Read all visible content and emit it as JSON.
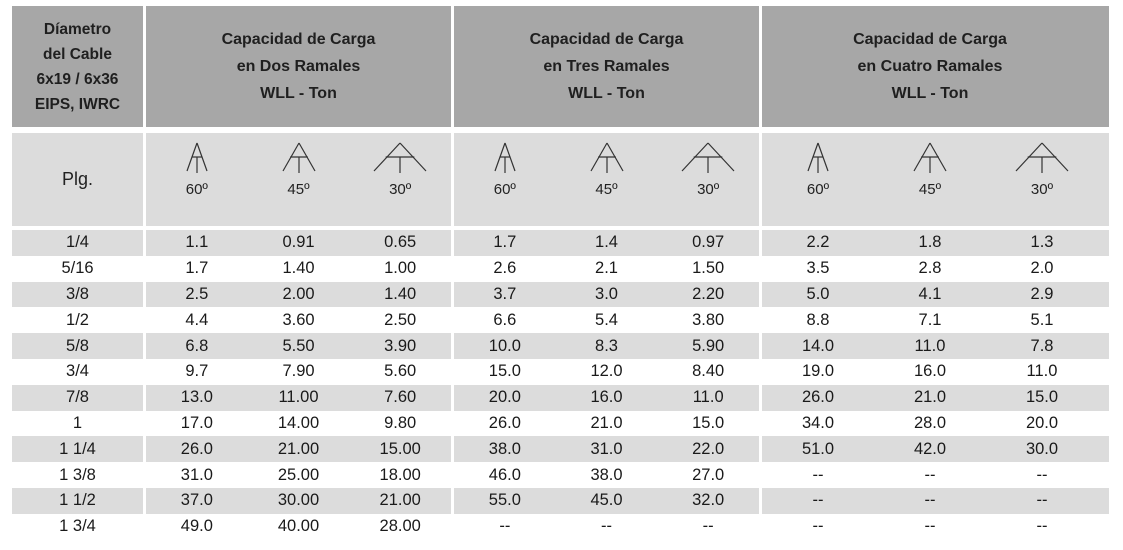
{
  "header": {
    "col0": [
      "Díametro",
      "del Cable",
      "6x19 / 6x36",
      "EIPS, IWRC"
    ],
    "groups": [
      [
        "Capacidad de Carga",
        "en Dos Ramales",
        "WLL - Ton"
      ],
      [
        "Capacidad de Carga",
        "en Tres Ramales",
        "WLL - Ton"
      ],
      [
        "Capacidad de Carga",
        "en Cuatro Ramales",
        "WLL - Ton"
      ]
    ]
  },
  "unit_label": "Plg.",
  "angle_labels": [
    "60º",
    "45º",
    "30º"
  ],
  "rows": [
    [
      "1/4",
      "1.1",
      "0.91",
      "0.65",
      "1.7",
      "1.4",
      "0.97",
      "2.2",
      "1.8",
      "1.3"
    ],
    [
      "5/16",
      "1.7",
      "1.40",
      "1.00",
      "2.6",
      "2.1",
      "1.50",
      "3.5",
      "2.8",
      "2.0"
    ],
    [
      "3/8",
      "2.5",
      "2.00",
      "1.40",
      "3.7",
      "3.0",
      "2.20",
      "5.0",
      "4.1",
      "2.9"
    ],
    [
      "1/2",
      "4.4",
      "3.60",
      "2.50",
      "6.6",
      "5.4",
      "3.80",
      "8.8",
      "7.1",
      "5.1"
    ],
    [
      "5/8",
      "6.8",
      "5.50",
      "3.90",
      "10.0",
      "8.3",
      "5.90",
      "14.0",
      "11.0",
      "7.8"
    ],
    [
      "3/4",
      "9.7",
      "7.90",
      "5.60",
      "15.0",
      "12.0",
      "8.40",
      "19.0",
      "16.0",
      "11.0"
    ],
    [
      "7/8",
      "13.0",
      "11.00",
      "7.60",
      "20.0",
      "16.0",
      "11.0",
      "26.0",
      "21.0",
      "15.0"
    ],
    [
      "1",
      "17.0",
      "14.00",
      "9.80",
      "26.0",
      "21.0",
      "15.0",
      "34.0",
      "28.0",
      "20.0"
    ],
    [
      "1 1/4",
      "26.0",
      "21.00",
      "15.00",
      "38.0",
      "31.0",
      "22.0",
      "51.0",
      "42.0",
      "30.0"
    ],
    [
      "1 3/8",
      "31.0",
      "25.00",
      "18.00",
      "46.0",
      "38.0",
      "27.0",
      "--",
      "--",
      "--"
    ],
    [
      "1 1/2",
      "37.0",
      "30.00",
      "21.00",
      "55.0",
      "45.0",
      "32.0",
      "--",
      "--",
      "--"
    ],
    [
      "1 3/4",
      "49.0",
      "40.00",
      "28.00",
      "--",
      "--",
      "--",
      "--",
      "--",
      "--"
    ]
  ]
}
